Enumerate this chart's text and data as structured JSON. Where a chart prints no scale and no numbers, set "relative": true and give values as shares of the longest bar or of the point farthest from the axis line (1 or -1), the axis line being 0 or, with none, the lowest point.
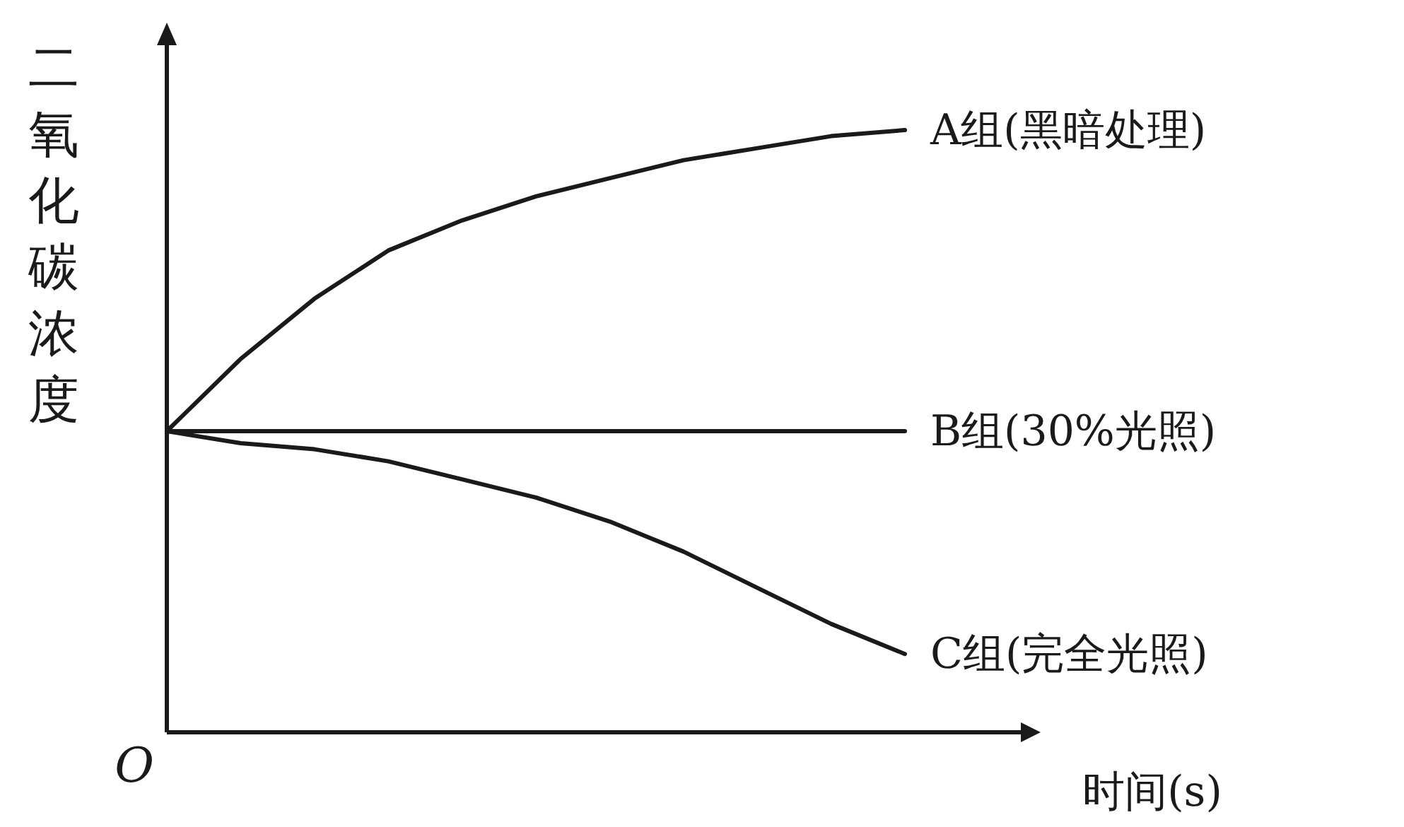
{
  "chart_data": {
    "type": "line",
    "relative": true,
    "ylabel": "二氧化碳浓度",
    "xlabel": "时间(s)",
    "annotations": [
      "O"
    ],
    "categories": [
      null,
      null,
      null,
      null,
      null,
      null,
      null,
      null,
      null,
      null,
      null
    ],
    "marker": "none",
    "line_style": "solid",
    "legend": false,
    "series": [
      {
        "name": "A组(黑暗处理)",
        "color": "#1a1a1a",
        "values": [
          0.5,
          0.62,
          0.72,
          0.8,
          0.85,
          0.89,
          0.92,
          0.95,
          0.97,
          0.99,
          1
        ]
      },
      {
        "name": "B组(30%光照)",
        "color": "#1a1a1a",
        "values": [
          0.5,
          0.5,
          0.5,
          0.5,
          0.5,
          0.5,
          0.5,
          0.5,
          0.5,
          0.5,
          0.5
        ]
      },
      {
        "name": "C组(完全光照)",
        "color": "#1a1a1a",
        "values": [
          0.5,
          0.48,
          0.47,
          0.45,
          0.42,
          0.39,
          0.35,
          0.3,
          0.24,
          0.18,
          0.13
        ]
      }
    ]
  }
}
